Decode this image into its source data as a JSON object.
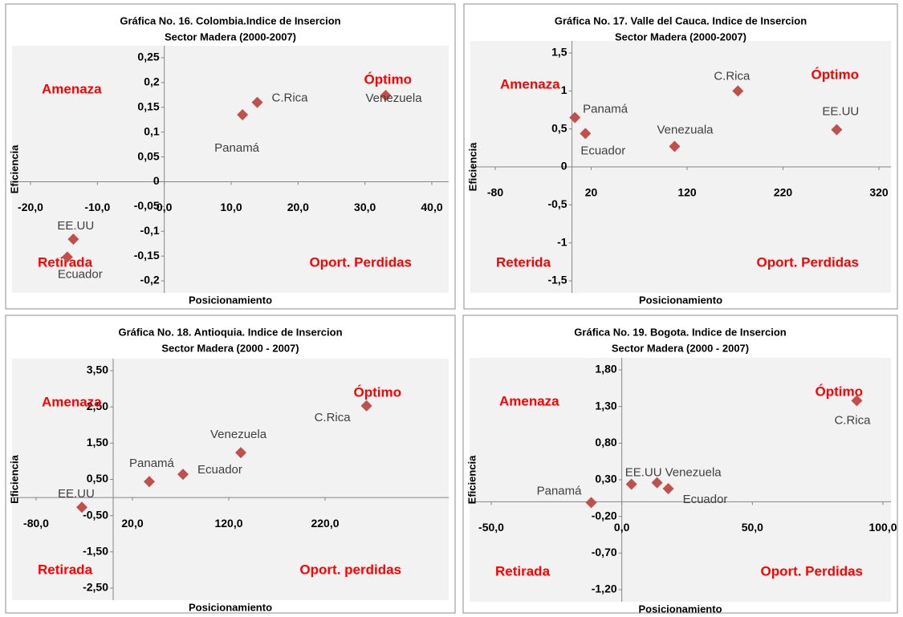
{
  "chart_data": [
    {
      "type": "scatter",
      "title": "Gráfica No. 16. Colombia.Indice de Insercion",
      "subtitle": "Sector Madera  (2000-2007)",
      "xlabel": "Posicionamiento",
      "ylabel": "Eficiencia",
      "point_labels": [
        "Venezuela",
        "C.Rica",
        "Panamá",
        "EE.UU",
        "Ecuador"
      ],
      "x": [
        33.1,
        13.9,
        11.7,
        -13.6,
        -14.5
      ],
      "values": [
        0.174,
        0.16,
        0.135,
        -0.116,
        -0.152
      ],
      "color": "#c0504d",
      "xlim": [
        -20,
        40
      ],
      "ylim": [
        -0.2,
        0.25
      ],
      "xticks": [
        {
          "value": -20,
          "label": "-20,0"
        },
        {
          "value": -10,
          "label": "-10,0"
        },
        {
          "value": 0,
          "label": "0,0"
        },
        {
          "value": 10,
          "label": "10,0"
        },
        {
          "value": 20,
          "label": "20,0"
        },
        {
          "value": 30,
          "label": "30,0"
        },
        {
          "value": 40,
          "label": "40,0"
        }
      ],
      "yticks": [
        {
          "value": 0.25,
          "label": "0,25"
        },
        {
          "value": 0.2,
          "label": "0,2"
        },
        {
          "value": 0.15,
          "label": "0,15"
        },
        {
          "value": 0.1,
          "label": "0,1"
        },
        {
          "value": 0.05,
          "label": "0,05"
        },
        0,
        {
          "value": -0.05,
          "label": "-0,05"
        },
        {
          "value": -0.1,
          "label": "-0,1"
        },
        {
          "value": -0.15,
          "label": "-0,15"
        },
        {
          "value": -0.2,
          "label": "-0,2"
        }
      ],
      "quadrant_labels": {
        "top_left": "Amenaza",
        "top_right": "Óptimo",
        "bottom_left": "Retirada",
        "bottom_right": "Oport. Perdidas"
      }
    },
    {
      "type": "scatter",
      "title": "Gráfica No. 17. Valle del Cauca.  Indice de Insercion",
      "subtitle": "Sector Madera  (2000-2007)",
      "xlabel": "Posicionamiento",
      "ylabel": "Eficiencia",
      "point_labels": [
        "Panamá",
        "Ecuador",
        "Venezuala",
        "C.Rica",
        "EE.UU"
      ],
      "x": [
        3,
        14,
        107,
        173,
        276
      ],
      "values": [
        0.65,
        0.44,
        0.27,
        1.0,
        0.49
      ],
      "color": "#c0504d",
      "xlim": [
        -80,
        320
      ],
      "ylim": [
        -1.5,
        1.5
      ],
      "xticks": [
        -80,
        20,
        120,
        220,
        320
      ],
      "yticks": [
        {
          "value": 1.5,
          "label": "1,5"
        },
        1,
        {
          "value": 0.5,
          "label": "0,5"
        },
        0,
        {
          "value": -0.5,
          "label": "-0,5"
        },
        -1,
        {
          "value": -1.5,
          "label": "-1,5"
        }
      ],
      "quadrant_labels": {
        "top_left": "Amenaza",
        "top_right": "Óptimo",
        "bottom_left": "Reterida",
        "bottom_right": "Oport. Perdidas"
      }
    },
    {
      "type": "scatter",
      "title": "Gráfica No. 18. Antioquia. Indice de Insercion",
      "subtitle": "Sector Madera (2000 - 2007)",
      "xlabel": "Posicionamiento",
      "ylabel": "Eficiencia",
      "point_labels": [
        "EE.UU",
        "Panamá",
        "Ecuador",
        "Venezuela",
        "C.Rica"
      ],
      "x": [
        -32.5,
        37.5,
        72.5,
        132.5,
        263
      ],
      "values": [
        -0.27,
        0.44,
        0.64,
        1.24,
        2.53
      ],
      "color": "#c0504d",
      "xlim": [
        -80,
        320
      ],
      "ylim": [
        -2.5,
        3.5
      ],
      "xticks": [
        {
          "value": -80,
          "label": "-80,0"
        },
        {
          "value": 20,
          "label": "20,0"
        },
        {
          "value": 120,
          "label": "120,0"
        },
        {
          "value": 220,
          "label": "220,0"
        }
      ],
      "yticks": [
        {
          "value": 3.5,
          "label": "3,50"
        },
        {
          "value": 2.5,
          "label": "2,50"
        },
        {
          "value": 1.5,
          "label": "1,50"
        },
        {
          "value": 0.5,
          "label": "0,50"
        },
        {
          "value": -0.5,
          "label": "-0,50"
        },
        {
          "value": -1.5,
          "label": "-1,50"
        },
        {
          "value": -2.5,
          "label": "-2,50"
        }
      ],
      "quadrant_labels": {
        "top_left": "Amenaza",
        "top_right": "Óptimo",
        "bottom_left": "Retirada",
        "bottom_right": "Oport. perdidas"
      }
    },
    {
      "type": "scatter",
      "title": "Gráfica No. 19. Bogota. Indice de Insercion",
      "subtitle": "Sector Madera (2000 - 2007)",
      "xlabel": "Posicionamiento",
      "ylabel": "Eficiencia",
      "point_labels": [
        "Panamá",
        "EE.UU",
        "Venezuela",
        "Ecuador",
        "C.Rica"
      ],
      "x": [
        -11.7,
        3.7,
        13.5,
        17.8,
        90
      ],
      "values": [
        -0.01,
        0.24,
        0.26,
        0.18,
        1.38
      ],
      "color": "#c0504d",
      "xlim": [
        -50,
        100
      ],
      "ylim": [
        -1.2,
        1.8
      ],
      "xticks": [
        {
          "value": -50,
          "label": "-50,0"
        },
        {
          "value": 0,
          "label": "0,0"
        },
        {
          "value": 50,
          "label": "50,0"
        },
        {
          "value": 100,
          "label": "100,0"
        }
      ],
      "yticks": [
        {
          "value": 1.8,
          "label": "1,80"
        },
        {
          "value": 1.3,
          "label": "1,30"
        },
        {
          "value": 0.8,
          "label": "0,80"
        },
        {
          "value": 0.3,
          "label": "0,30"
        },
        {
          "value": -0.2,
          "label": "-0,20"
        },
        {
          "value": -0.7,
          "label": "-0,70"
        },
        {
          "value": -1.2,
          "label": "-1,20"
        }
      ],
      "quadrant_labels": {
        "top_left": "Amenaza",
        "top_right": "Óptimo",
        "bottom_left": "Retirada",
        "bottom_right": "Oport. Perdidas"
      }
    }
  ]
}
